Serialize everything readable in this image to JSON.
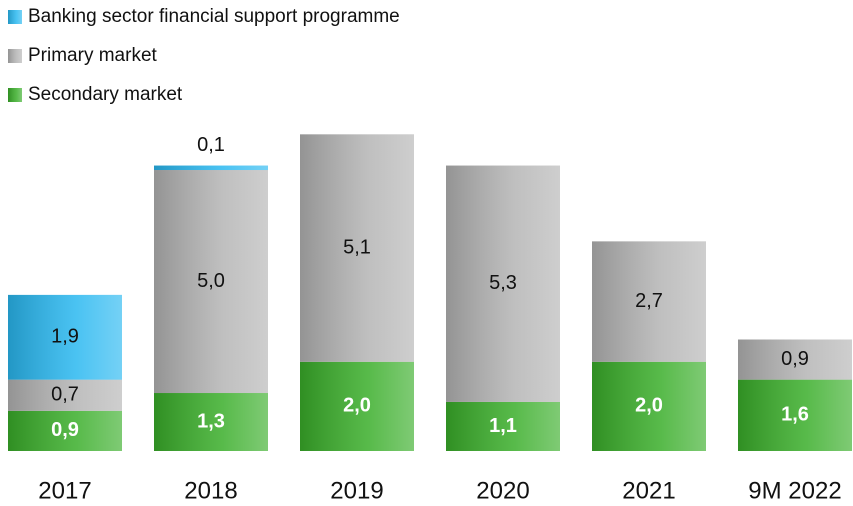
{
  "chart_data": {
    "type": "bar",
    "stacked": true,
    "categories": [
      "2017",
      "2018",
      "2019",
      "2020",
      "2021",
      "9M 2022"
    ],
    "series": [
      {
        "name": "Secondary market",
        "color": "#3aae2a",
        "values": [
          0.9,
          1.3,
          2.0,
          1.1,
          2.0,
          1.6
        ],
        "value_labels": [
          "0,9",
          "1,3",
          "2,0",
          "1,1",
          "2,0",
          "1,6"
        ]
      },
      {
        "name": "Primary market",
        "color": "#b4b4b4",
        "values": [
          0.7,
          5.0,
          5.1,
          5.3,
          2.7,
          0.9
        ],
        "value_labels": [
          "0,7",
          "5,0",
          "5,1",
          "5,3",
          "2,7",
          "0,9"
        ]
      },
      {
        "name": "Banking sector financial support programme",
        "color": "#2ab8f0",
        "values": [
          1.9,
          0.1,
          null,
          null,
          null,
          null
        ],
        "value_labels": [
          "1,9",
          "0,1",
          null,
          null,
          null,
          null
        ]
      }
    ],
    "legend": "top-left"
  }
}
